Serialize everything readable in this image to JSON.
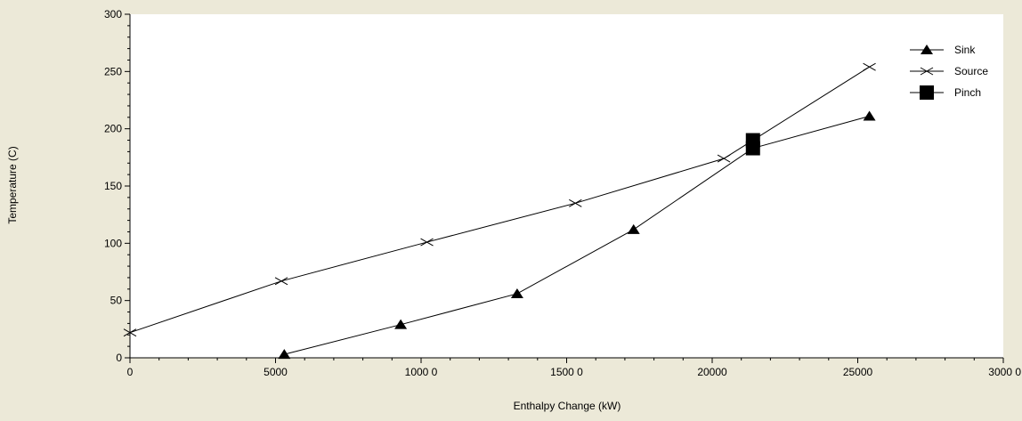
{
  "chart_data": {
    "type": "line",
    "title": "",
    "xlabel": "Enthalpy Change (kW)",
    "ylabel": "Temperature (C)",
    "xlim": [
      0,
      30000
    ],
    "ylim": [
      0,
      300
    ],
    "x_ticks": [
      0,
      5000,
      10000,
      15000,
      20000,
      25000,
      30000
    ],
    "x_tick_labels": [
      "0",
      "5000",
      "1000 0",
      "1500 0",
      "20000",
      "25000",
      "3000 0"
    ],
    "y_ticks": [
      0,
      50,
      100,
      150,
      200,
      250,
      300
    ],
    "y_tick_labels": [
      "0",
      "50",
      "100",
      "150",
      "200",
      "250",
      "300"
    ],
    "grid": false,
    "legend_position": "top-right",
    "background_color": "#ece9d8",
    "plot_color": "#ffffff",
    "line_color": "#000000",
    "series": [
      {
        "name": "Sink",
        "marker": "triangle",
        "x": [
          5300,
          9300,
          13300,
          17300,
          21400,
          25400
        ],
        "y": [
          3,
          29,
          56,
          112,
          183,
          211
        ]
      },
      {
        "name": "Source",
        "marker": "x",
        "x": [
          0,
          5200,
          10200,
          15300,
          20400,
          21400,
          25400
        ],
        "y": [
          22,
          67,
          101,
          135,
          174,
          190,
          254
        ]
      },
      {
        "name": "Pinch",
        "marker": "square",
        "x": [
          21400,
          21400
        ],
        "y": [
          183,
          190
        ]
      }
    ]
  }
}
